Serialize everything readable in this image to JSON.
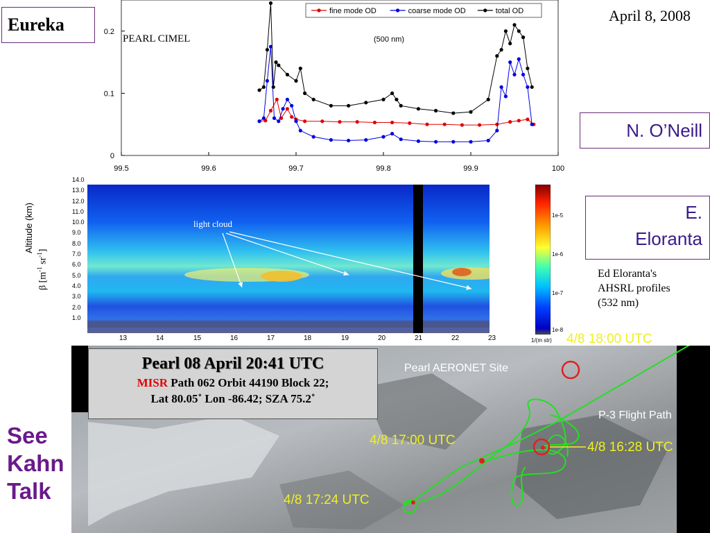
{
  "header": {
    "site": "Eureka",
    "date": "April 8, 2008"
  },
  "names": {
    "oneill": "N. O’Neill",
    "eloranta": "E. Eloranta"
  },
  "eloranta_note": [
    "Ed Eloranta's",
    "AHSRL profiles",
    "(532 nm)"
  ],
  "see_kahn": [
    "See",
    "Kahn",
    "Talk"
  ],
  "chart_data": [
    {
      "type": "line",
      "annotations": [
        "PEARL CIMEL",
        "(500 nm)"
      ],
      "xlim": [
        99.5,
        100.0
      ],
      "ylim": [
        0,
        0.25
      ],
      "xticks": [
        "99.5",
        "99.6",
        "99.7",
        "99.8",
        "99.9",
        "100"
      ],
      "yticks": [
        "0",
        "0.1",
        "0.2"
      ],
      "legend": "top-right",
      "series": [
        {
          "name": "fine mode OD",
          "color": "#e00000",
          "x": [
            99.658,
            99.665,
            99.671,
            99.678,
            99.683,
            99.69,
            99.695,
            99.7,
            99.71,
            99.73,
            99.75,
            99.77,
            99.79,
            99.81,
            99.83,
            99.85,
            99.87,
            99.89,
            99.91,
            99.93,
            99.945,
            99.955,
            99.965,
            99.972
          ],
          "y": [
            0.055,
            0.056,
            0.072,
            0.09,
            0.06,
            0.075,
            0.062,
            0.058,
            0.055,
            0.055,
            0.054,
            0.054,
            0.053,
            0.053,
            0.052,
            0.05,
            0.05,
            0.049,
            0.049,
            0.05,
            0.054,
            0.056,
            0.058,
            0.05
          ]
        },
        {
          "name": "coarse mode OD",
          "color": "#0000e0",
          "x": [
            99.658,
            99.663,
            99.667,
            99.671,
            99.675,
            99.68,
            99.685,
            99.69,
            99.695,
            99.7,
            99.705,
            99.72,
            99.74,
            99.76,
            99.78,
            99.8,
            99.81,
            99.82,
            99.84,
            99.86,
            99.88,
            99.9,
            99.92,
            99.93,
            99.935,
            99.94,
            99.945,
            99.95,
            99.955,
            99.96,
            99.965,
            99.97
          ],
          "y": [
            0.055,
            0.06,
            0.12,
            0.175,
            0.06,
            0.055,
            0.075,
            0.09,
            0.08,
            0.055,
            0.04,
            0.03,
            0.025,
            0.024,
            0.025,
            0.03,
            0.035,
            0.026,
            0.023,
            0.022,
            0.022,
            0.022,
            0.024,
            0.04,
            0.11,
            0.095,
            0.15,
            0.13,
            0.155,
            0.13,
            0.11,
            0.05
          ]
        },
        {
          "name": "total OD",
          "color": "#000000",
          "x": [
            99.658,
            99.663,
            99.667,
            99.671,
            99.674,
            99.677,
            99.68,
            99.69,
            99.7,
            99.705,
            99.71,
            99.72,
            99.74,
            99.76,
            99.78,
            99.8,
            99.81,
            99.815,
            99.82,
            99.84,
            99.86,
            99.88,
            99.9,
            99.92,
            99.93,
            99.935,
            99.94,
            99.945,
            99.95,
            99.955,
            99.96,
            99.965,
            99.97
          ],
          "y": [
            0.105,
            0.11,
            0.17,
            0.245,
            0.11,
            0.15,
            0.145,
            0.13,
            0.12,
            0.14,
            0.1,
            0.09,
            0.08,
            0.08,
            0.085,
            0.09,
            0.1,
            0.09,
            0.08,
            0.075,
            0.072,
            0.068,
            0.07,
            0.09,
            0.16,
            0.17,
            0.2,
            0.18,
            0.21,
            0.2,
            0.19,
            0.14,
            0.11
          ]
        }
      ]
    },
    {
      "type": "heatmap",
      "ylabel": "Altitude (km)",
      "ylabel2": "β [m",
      "xticks": [
        "13",
        "14",
        "15",
        "16",
        "17",
        "18",
        "19",
        "20",
        "21",
        "22",
        "23"
      ],
      "yticks": [
        "14.0",
        "13.0",
        "12.0",
        "11.0",
        "10.0",
        "9.0",
        "8.0",
        "7.0",
        "6.0",
        "5.0",
        "4.0",
        "3.0",
        "2.0",
        "1.0"
      ],
      "colorbar_ticks": [
        "1e-5",
        "1e-6",
        "1e-7",
        "1e-8"
      ],
      "colorbar_unit": "1/(m str)",
      "annotation": "light cloud"
    }
  ],
  "misr_box": {
    "title": "Pearl 08 April  20:41 UTC",
    "misr": "MISR",
    "line1": " Path 062 Orbit 44190  Block 22;",
    "line2": "Lat 80.05˚ Lon -86.42;  SZA 75.2˚"
  },
  "map": {
    "site_label": "Pearl AERONET Site",
    "flight_label": "P-3 Flight Path",
    "times": [
      "4/8 18:00 UTC",
      "4/8 17:00 UTC",
      "4/8 16:28 UTC",
      "4/8 17:24 UTC"
    ]
  }
}
